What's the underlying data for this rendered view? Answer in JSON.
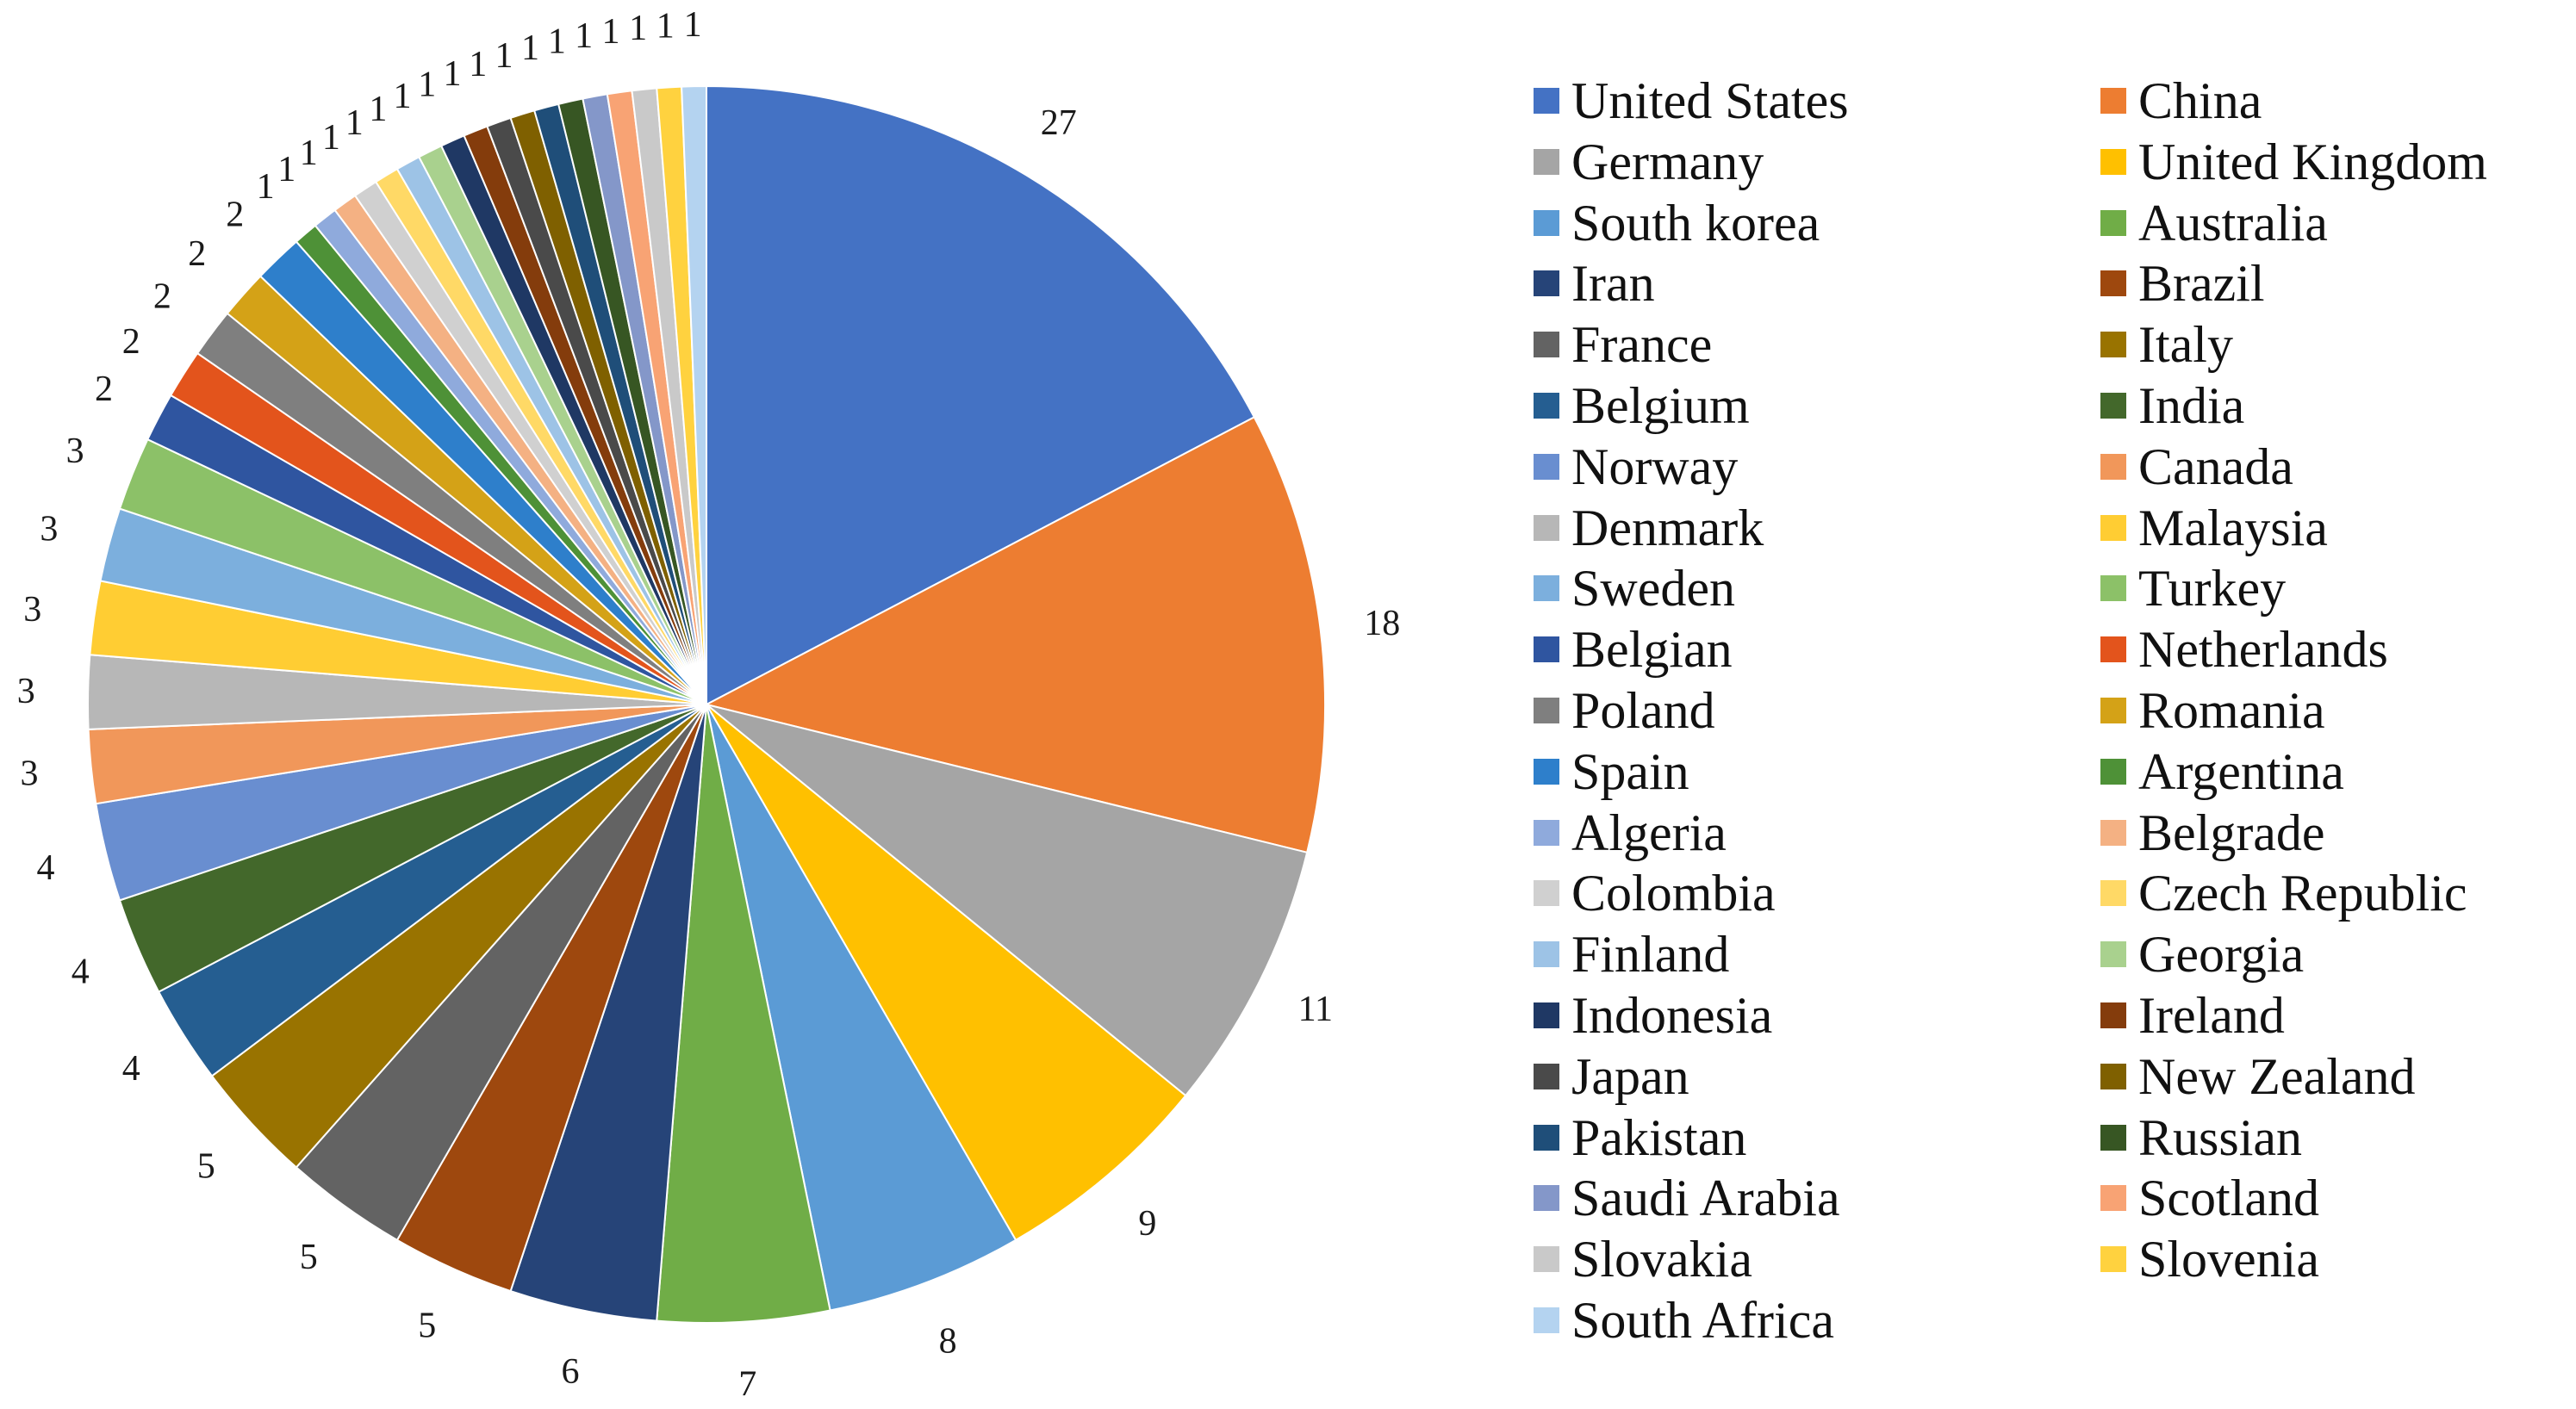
{
  "chart_data": {
    "type": "pie",
    "title": "",
    "legend_position": "right",
    "slices": [
      {
        "name": "United States",
        "value": 27,
        "color": "#4472C4"
      },
      {
        "name": "China",
        "value": 18,
        "color": "#ED7D31"
      },
      {
        "name": "Germany",
        "value": 11,
        "color": "#A5A5A5"
      },
      {
        "name": "United Kingdom",
        "value": 9,
        "color": "#FFC000"
      },
      {
        "name": "South korea",
        "value": 8,
        "color": "#5B9BD5"
      },
      {
        "name": "Australia",
        "value": 7,
        "color": "#70AD47"
      },
      {
        "name": "Iran",
        "value": 6,
        "color": "#264478"
      },
      {
        "name": "Brazil",
        "value": 5,
        "color": "#9E480E"
      },
      {
        "name": "France",
        "value": 5,
        "color": "#636363"
      },
      {
        "name": "Italy",
        "value": 5,
        "color": "#997300"
      },
      {
        "name": "Belgium",
        "value": 4,
        "color": "#255E91"
      },
      {
        "name": "India",
        "value": 4,
        "color": "#43682B"
      },
      {
        "name": "Norway",
        "value": 4,
        "color": "#698ED0"
      },
      {
        "name": "Canada",
        "value": 3,
        "color": "#F1975A"
      },
      {
        "name": "Denmark",
        "value": 3,
        "color": "#B7B7B7"
      },
      {
        "name": "Malaysia",
        "value": 3,
        "color": "#FFCD33"
      },
      {
        "name": "Sweden",
        "value": 3,
        "color": "#7CAFDD"
      },
      {
        "name": " Turkey",
        "value": 3,
        "color": "#8CC168"
      },
      {
        "name": "Belgian",
        "value": 2,
        "color": "#2F55A0"
      },
      {
        "name": "Netherlands",
        "value": 2,
        "color": "#E3541C"
      },
      {
        "name": "Poland",
        "value": 2,
        "color": "#7F7F7F"
      },
      {
        "name": "Romania",
        "value": 2,
        "color": "#D4A217"
      },
      {
        "name": "Spain",
        "value": 2,
        "color": "#2E7FCB"
      },
      {
        "name": " Argentina",
        "value": 1,
        "color": "#4E9137"
      },
      {
        "name": "Algeria",
        "value": 1,
        "color": "#8FAADC"
      },
      {
        "name": "Belgrade",
        "value": 1,
        "color": "#F4B183"
      },
      {
        "name": "Colombia",
        "value": 1,
        "color": "#D0D0D0"
      },
      {
        "name": "Czech Republic",
        "value": 1,
        "color": "#FFD966"
      },
      {
        "name": "Finland",
        "value": 1,
        "color": "#9DC3E6"
      },
      {
        "name": "Georgia",
        "value": 1,
        "color": "#A9D18E"
      },
      {
        "name": "Indonesia",
        "value": 1,
        "color": "#1F3864"
      },
      {
        "name": "Ireland",
        "value": 1,
        "color": "#843C0C"
      },
      {
        "name": "Japan",
        "value": 1,
        "color": "#4A4A4A"
      },
      {
        "name": "New Zealand",
        "value": 1,
        "color": "#7F6000"
      },
      {
        "name": "Pakistan",
        "value": 1,
        "color": "#1F4E79"
      },
      {
        "name": "Russian",
        "value": 1,
        "color": "#375623"
      },
      {
        "name": "Saudi Arabia",
        "value": 1,
        "color": "#8497C9"
      },
      {
        "name": "Scotland",
        "value": 1,
        "color": "#F8A374"
      },
      {
        "name": "Slovakia",
        "value": 1,
        "color": "#C9C9C9"
      },
      {
        "name": "Slovenia",
        "value": 1,
        "color": "#FFD23F"
      },
      {
        "name": "South Africa",
        "value": 1,
        "color": "#B4D3F0"
      }
    ]
  }
}
